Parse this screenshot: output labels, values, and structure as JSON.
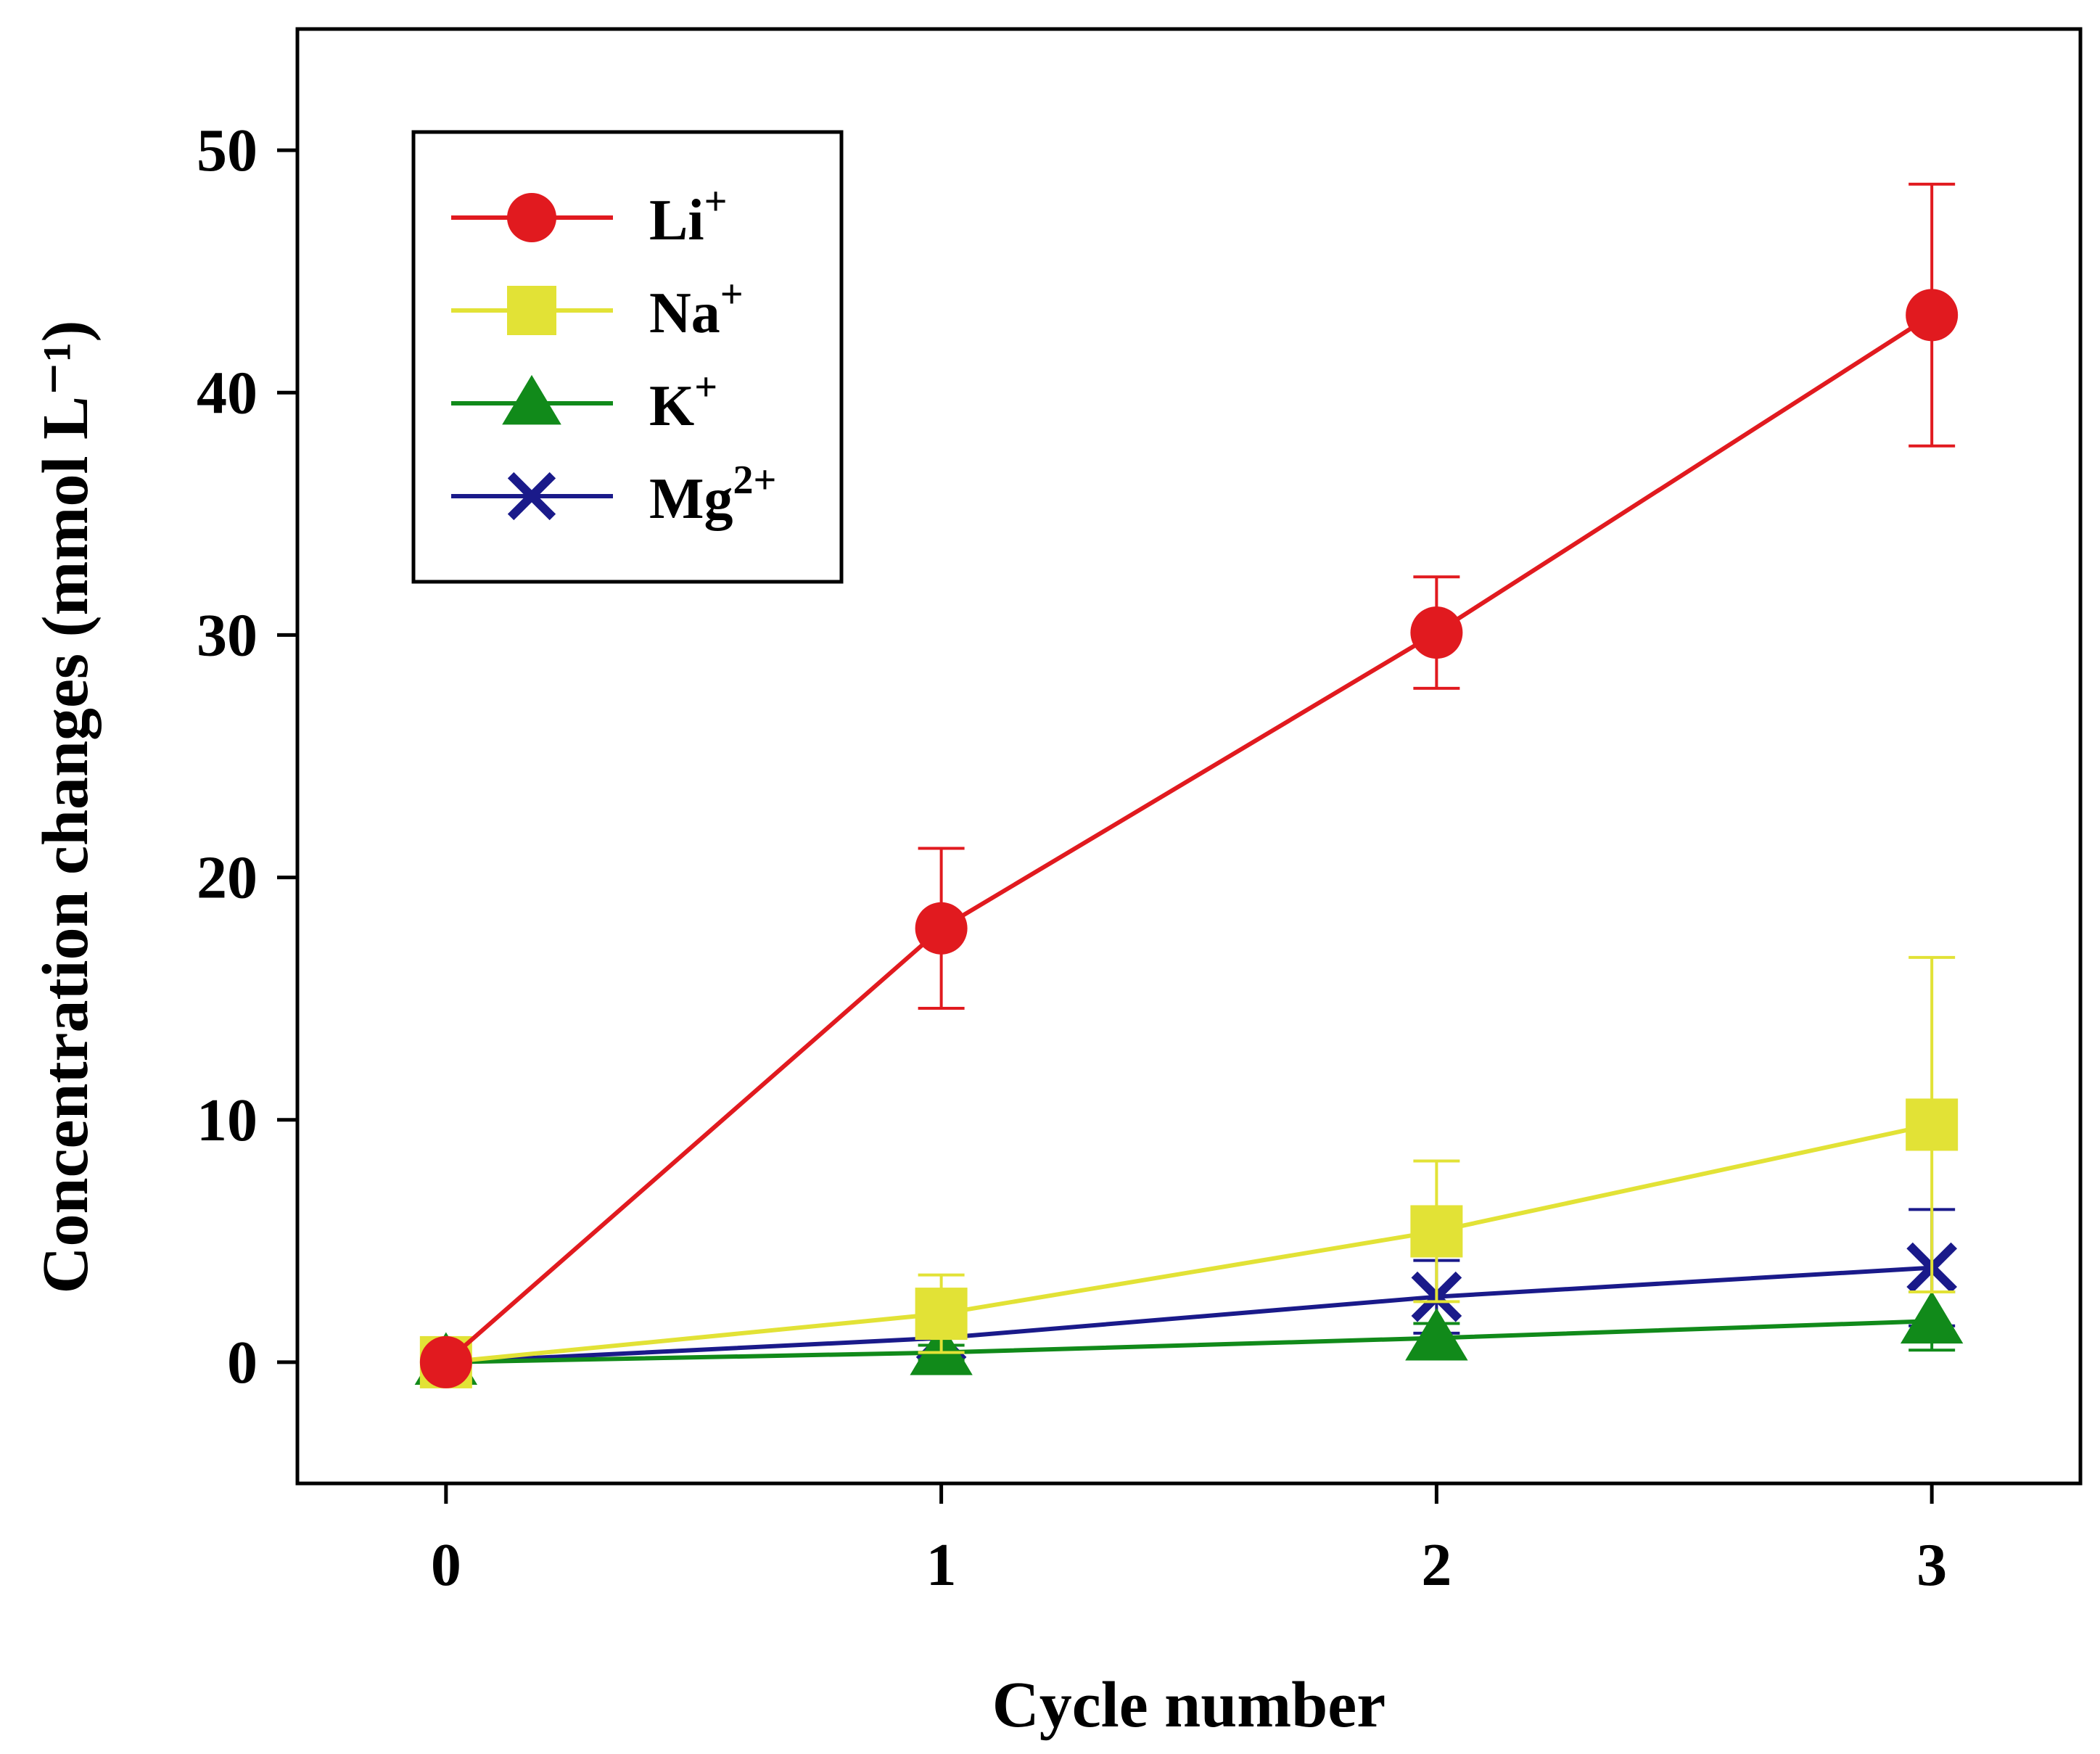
{
  "chart_data": {
    "type": "line",
    "title": "",
    "xlabel": "Cycle number",
    "ylabel": "Concentration changes (mmol L⁻¹)",
    "x": [
      0,
      1,
      2,
      3
    ],
    "xticks": [
      "0",
      "1",
      "2",
      "3"
    ],
    "yticks": [
      "0",
      "10",
      "20",
      "30",
      "40",
      "50"
    ],
    "xlim": [
      -0.3,
      3.3
    ],
    "ylim": [
      -5,
      55
    ],
    "grid": false,
    "legend_position": "top-left",
    "series": [
      {
        "name": "Li",
        "superscript": "+",
        "marker": "circle",
        "color": "#e11a1f",
        "values": [
          0,
          17.9,
          30.1,
          43.2
        ],
        "errors": [
          0,
          3.3,
          2.3,
          5.4
        ]
      },
      {
        "name": "Na",
        "superscript": "+",
        "marker": "square",
        "color": "#e2e236",
        "values": [
          0,
          2.0,
          5.4,
          9.8
        ],
        "errors": [
          0,
          1.6,
          2.9,
          6.9
        ]
      },
      {
        "name": "K",
        "superscript": "+",
        "marker": "triangle",
        "color": "#118a1a",
        "values": [
          0,
          0.4,
          1.0,
          1.7
        ],
        "errors": [
          0,
          0.3,
          0.6,
          1.2
        ]
      },
      {
        "name": "Mg",
        "superscript": "2+",
        "marker": "x",
        "color": "#1a1a8a",
        "values": [
          0,
          1.0,
          2.7,
          3.9
        ],
        "errors": [
          0,
          0.6,
          1.5,
          2.4
        ]
      }
    ]
  }
}
